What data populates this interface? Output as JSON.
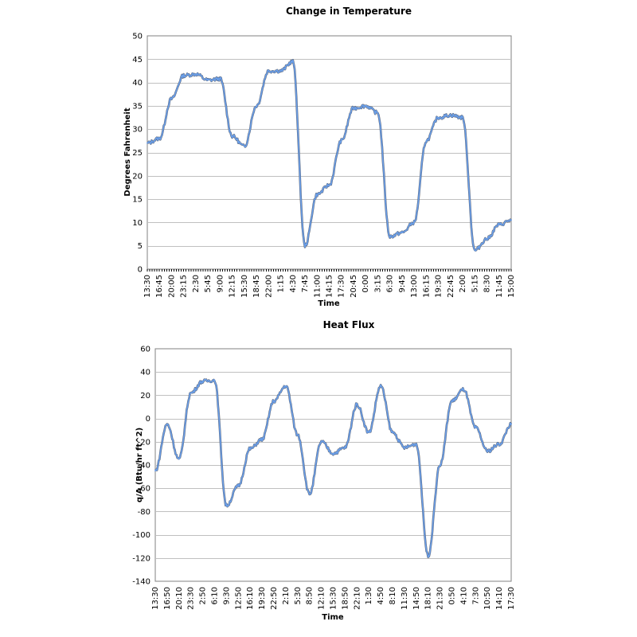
{
  "chart_data": [
    {
      "type": "line",
      "title": "Change in Temperature",
      "xlabel": "Time",
      "ylabel": "Degrees Fahrenheit",
      "ylim": [
        0,
        50
      ],
      "yticks": [
        0,
        5,
        10,
        15,
        20,
        25,
        30,
        35,
        40,
        45,
        50
      ],
      "grid": true,
      "xticklabels": [
        "13:30",
        "16:45",
        "20:00",
        "23:15",
        "2:30",
        "5:45",
        "9:00",
        "12:15",
        "15:30",
        "18:45",
        "22:00",
        "1:15",
        "4:30",
        "7:45",
        "11:00",
        "14:15",
        "17:30",
        "20:45",
        "0:00",
        "3:15",
        "6:30",
        "9:45",
        "13:00",
        "16:15",
        "19:30",
        "22:45",
        "2:00",
        "5:15",
        "8:30",
        "11:45",
        "15:00"
      ],
      "series": [
        {
          "color": "#6a9ee8",
          "x": [
            0,
            1,
            2,
            3,
            4,
            5,
            6,
            7,
            8,
            9,
            10,
            11,
            12,
            13,
            14,
            15,
            16,
            17,
            18,
            19,
            20,
            21,
            22,
            23,
            24,
            25,
            26,
            27,
            28,
            29,
            30
          ],
          "values": [
            27,
            28,
            36.5,
            41.5,
            41.8,
            40.5,
            40.8,
            28.5,
            26.3,
            35,
            42.5,
            42.5,
            44.5,
            5,
            16,
            18,
            27.5,
            34.5,
            35,
            33.5,
            7,
            7.8,
            10,
            27.5,
            32.5,
            33,
            32.5,
            4,
            6.5,
            9.5,
            10.5
          ]
        }
      ]
    },
    {
      "type": "line",
      "title": "Heat Flux",
      "xlabel": "Time",
      "ylabel": "q/A (Btu/hr ft^2)",
      "ylim": [
        -140,
        60
      ],
      "yticks": [
        -140,
        -120,
        -100,
        -80,
        -60,
        -40,
        -20,
        0,
        20,
        40,
        60
      ],
      "grid": true,
      "xticklabels": [
        "13:30",
        "16:50",
        "20:10",
        "23:30",
        "2:50",
        "6:10",
        "9:30",
        "12:50",
        "16:10",
        "19:30",
        "22:50",
        "2:10",
        "5:30",
        "8:50",
        "12:10",
        "15:30",
        "18:50",
        "22:10",
        "1:30",
        "4:50",
        "8:10",
        "11:30",
        "14:50",
        "18:10",
        "21:30",
        "0:50",
        "4:10",
        "7:30",
        "10:50",
        "14:10",
        "17:30"
      ],
      "series": [
        {
          "color": "#6a9ee8",
          "x": [
            0,
            1,
            2,
            3,
            4,
            5,
            6,
            7,
            8,
            9,
            10,
            11,
            12,
            13,
            14,
            15,
            16,
            17,
            18,
            19,
            20,
            21,
            22,
            23,
            24,
            25,
            26,
            27,
            28,
            29,
            30
          ],
          "values": [
            -45,
            -5,
            -35,
            22,
            32,
            33,
            -75,
            -58,
            -26,
            -18,
            15,
            28,
            -14,
            -65,
            -20,
            -30,
            -25,
            12,
            -12,
            28,
            -12,
            -25,
            -22,
            -118,
            -40,
            15,
            25,
            -8,
            -28,
            -22,
            -5
          ]
        }
      ]
    }
  ]
}
